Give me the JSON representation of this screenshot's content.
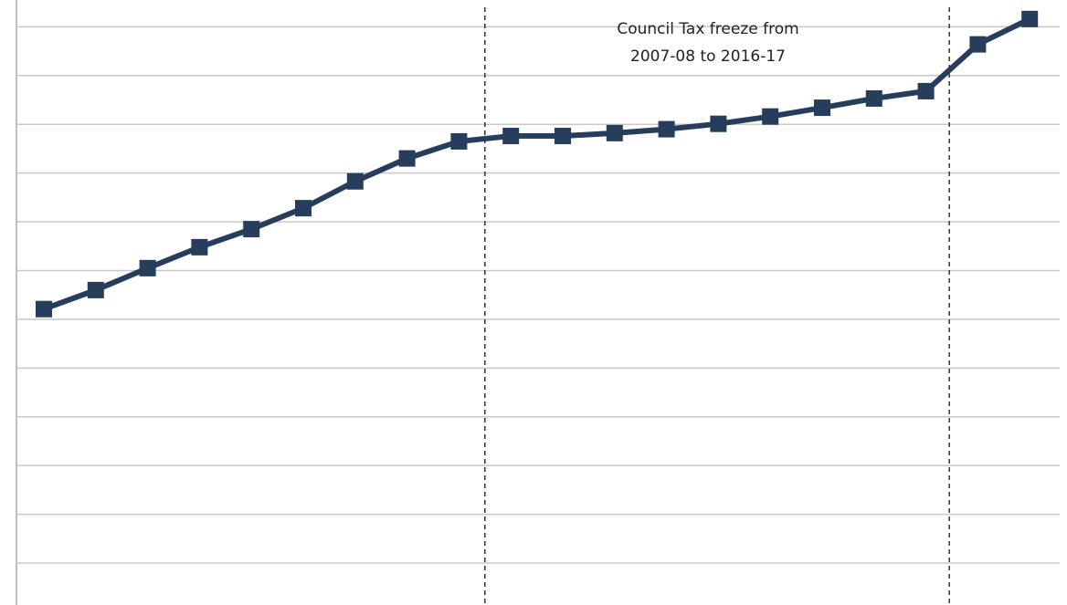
{
  "chart_data": {
    "type": "line",
    "annotation": [
      "Council Tax freeze from",
      "2007-08 to 2016-17"
    ],
    "categories": [
      null,
      null,
      null,
      null,
      null,
      null,
      null,
      null,
      null,
      null,
      null,
      null,
      null,
      null,
      null,
      null,
      null,
      null,
      null,
      null
    ],
    "series": [
      {
        "color": "#263d5c",
        "values": [
          6.21,
          6.6,
          7.05,
          7.48,
          7.85,
          8.28,
          8.83,
          9.3,
          9.65,
          9.76,
          9.76,
          9.82,
          9.9,
          10.01,
          10.16,
          10.34,
          10.53,
          10.68,
          11.64,
          12.16
        ]
      }
    ],
    "ylim": [
      0.14,
      12.55
    ],
    "yticks": [
      1,
      2,
      3,
      4,
      5,
      6,
      7,
      8,
      9,
      10,
      11,
      12
    ],
    "grid": true,
    "vlines": [
      8.5,
      17.45
    ]
  }
}
